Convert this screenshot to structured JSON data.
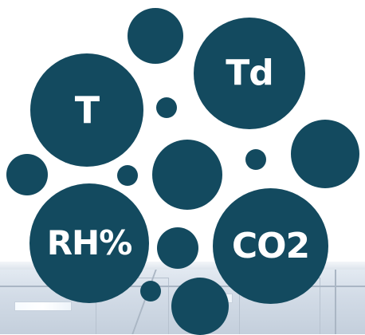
{
  "colors": {
    "bubble": "#134a5f",
    "label": "#ffffff",
    "ceiling": "#d3dce7"
  },
  "bubbles": {
    "temperature": {
      "label": "T"
    },
    "dew_point": {
      "label": "Td"
    },
    "relative_humidity": {
      "label": "RH%"
    },
    "carbon_dioxide": {
      "label": "CO2"
    }
  }
}
